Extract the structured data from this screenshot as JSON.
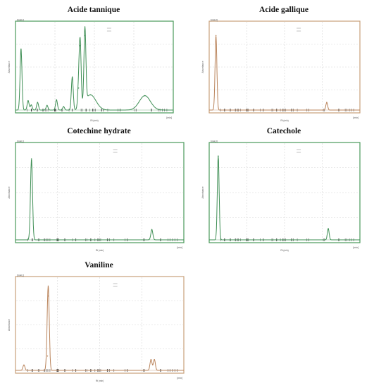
{
  "chart_data": [
    {
      "type": "line",
      "title": "Acide tannique",
      "frame_color": "#4a9a5a",
      "line_color": "#3f8f55",
      "ylabel": "Absorbance",
      "xlabel": "Rt (min)",
      "corner_label": "[mAU]",
      "end_label": "[min]",
      "xlim": [
        0,
        10
      ],
      "ylim": [
        0,
        1000
      ],
      "peaks": [
        {
          "x": 0.35,
          "y": 720
        },
        {
          "x": 0.8,
          "y": 110
        },
        {
          "x": 1.0,
          "y": 60
        },
        {
          "x": 1.4,
          "y": 90
        },
        {
          "x": 2.0,
          "y": 55
        },
        {
          "x": 2.6,
          "y": 120
        },
        {
          "x": 3.05,
          "y": 40
        },
        {
          "x": 3.6,
          "y": 390
        },
        {
          "x": 4.1,
          "y": 760
        },
        {
          "x": 4.0,
          "y": 260
        },
        {
          "x": 4.4,
          "y": 880
        },
        {
          "x": 4.75,
          "y": 180
        },
        {
          "x": 8.2,
          "y": 170
        }
      ]
    },
    {
      "type": "line",
      "title": "Acide gallique",
      "frame_color": "#c8a07a",
      "line_color": "#b9835a",
      "ylabel": "Absorbance",
      "xlabel": "Rt (min)",
      "corner_label": "[mAU]",
      "end_label": "[min]",
      "xlim": [
        0,
        10
      ],
      "ylim": [
        0,
        1000
      ],
      "peaks": [
        {
          "x": 0.45,
          "y": 880
        },
        {
          "x": 7.8,
          "y": 90
        }
      ]
    },
    {
      "type": "line",
      "title": "Cotechine hydrate",
      "frame_color": "#4a9a5a",
      "line_color": "#3f8f55",
      "ylabel": "Absorbance",
      "xlabel": "Rt (min)",
      "corner_label": "[mAU]",
      "end_label": "[min]",
      "xlim": [
        0,
        10
      ],
      "ylim": [
        0,
        1000
      ],
      "peaks": [
        {
          "x": 0.95,
          "y": 870
        },
        {
          "x": 8.1,
          "y": 110
        }
      ]
    },
    {
      "type": "line",
      "title": "Catechole",
      "frame_color": "#4a9a5a",
      "line_color": "#3f8f55",
      "ylabel": "Absorbance",
      "xlabel": "Rt (min)",
      "corner_label": "[mAU]",
      "end_label": "[min]",
      "xlim": [
        0,
        10
      ],
      "ylim": [
        0,
        1000
      ],
      "peaks": [
        {
          "x": 0.6,
          "y": 900
        },
        {
          "x": 7.9,
          "y": 120
        }
      ]
    },
    {
      "type": "line",
      "title": "Vaniline",
      "frame_color": "#c8a07a",
      "line_color": "#b9835a",
      "ylabel": "Absorbance",
      "xlabel": "Rt (min)",
      "corner_label": "[mAU]",
      "end_label": "[min]",
      "xlim": [
        0,
        10
      ],
      "ylim": [
        0,
        1000
      ],
      "peaks": [
        {
          "x": 0.5,
          "y": 60
        },
        {
          "x": 1.95,
          "y": 830
        },
        {
          "x": 1.9,
          "y": 160
        },
        {
          "x": 8.05,
          "y": 120
        },
        {
          "x": 8.25,
          "y": 120
        }
      ]
    }
  ]
}
